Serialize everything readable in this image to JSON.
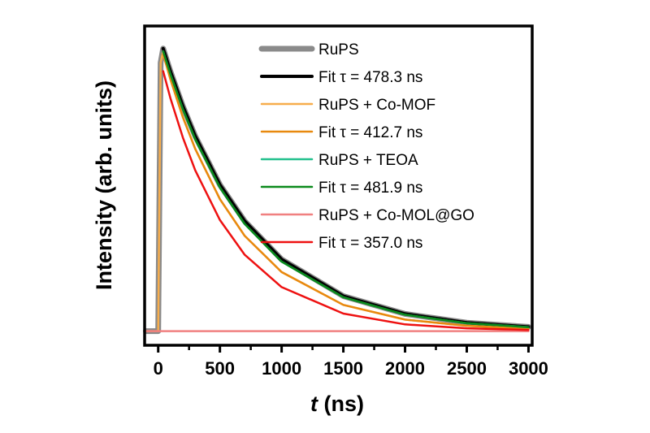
{
  "chart_data": {
    "type": "line",
    "title": "",
    "xlabel_italic": "t",
    "xlabel_rest": " (ns)",
    "ylabel": "Intensity (arb. units)",
    "xlim": [
      -110,
      3030
    ],
    "ylim": [
      -0.05,
      1.08
    ],
    "xticks": [
      0,
      500,
      1000,
      1500,
      2000,
      2500,
      3000
    ],
    "xtick_labels": [
      "0",
      "500",
      "1000",
      "1500",
      "2000",
      "2500",
      "3000"
    ],
    "minor_xticks": [
      250,
      750,
      1250,
      1750,
      2250,
      2750
    ],
    "grid": false,
    "legend_position": "top-right",
    "x": [
      -100,
      0,
      20,
      40,
      100,
      200,
      300,
      500,
      700,
      1000,
      1500,
      2000,
      2500,
      3000
    ],
    "series": [
      {
        "name": "RuPS",
        "legend": "RuPS",
        "color": "#8a8a8a",
        "width": 7,
        "values": [
          0,
          0,
          0.95,
          1.0,
          0.918,
          0.796,
          0.69,
          0.518,
          0.39,
          0.254,
          0.124,
          0.061,
          0.03,
          0.015
        ]
      },
      {
        "name": "Fit τ = 478.3 ns",
        "legend": "Fit τ = 478.3 ns",
        "color": "#000000",
        "width": 4,
        "values": [
          null,
          null,
          null,
          1.0,
          0.918,
          0.796,
          0.69,
          0.518,
          0.39,
          0.254,
          0.124,
          0.061,
          0.03,
          0.015
        ]
      },
      {
        "name": "RuPS + Co-MOF",
        "legend": "RuPS + Co-MOF",
        "color": "#f7ad4c",
        "width": 2.5,
        "values": [
          0,
          0,
          0.95,
          0.99,
          0.89,
          0.757,
          0.645,
          0.467,
          0.338,
          0.209,
          0.093,
          0.041,
          0.019,
          0.008
        ]
      },
      {
        "name": "Fit τ = 412.7 ns",
        "legend": "Fit τ = 412.7 ns",
        "color": "#e8890f",
        "width": 2.5,
        "values": [
          null,
          null,
          null,
          0.98,
          0.89,
          0.757,
          0.645,
          0.467,
          0.338,
          0.209,
          0.093,
          0.041,
          0.019,
          0.008
        ]
      },
      {
        "name": "RuPS + TEOA",
        "legend": "RuPS + TEOA",
        "color": "#22c08c",
        "width": 2.5,
        "values": [
          null,
          null,
          null,
          0.99,
          0.908,
          0.785,
          0.679,
          0.508,
          0.38,
          0.246,
          0.12,
          0.058,
          0.028,
          0.014
        ]
      },
      {
        "name": "Fit τ = 481.9 ns",
        "legend": "Fit τ = 481.9 ns",
        "color": "#0b8a1c",
        "width": 2.5,
        "values": [
          null,
          null,
          null,
          0.99,
          0.908,
          0.785,
          0.679,
          0.508,
          0.38,
          0.246,
          0.12,
          0.058,
          0.028,
          0.014
        ]
      },
      {
        "name": "RuPS + Co-MOL@GO",
        "legend": "RuPS + Co-MOL@GO",
        "color": "#f08080",
        "width": 2.5,
        "values": [
          0,
          0,
          0,
          0,
          0,
          0,
          0,
          0,
          0,
          0,
          0,
          0,
          0,
          0
        ]
      },
      {
        "name": "Fit τ = 357.0 ns",
        "legend": "Fit τ = 357.0 ns",
        "color": "#ee1111",
        "width": 2.5,
        "values": [
          null,
          null,
          null,
          0.92,
          0.823,
          0.685,
          0.569,
          0.393,
          0.271,
          0.156,
          0.062,
          0.024,
          0.01,
          0.004
        ]
      }
    ]
  }
}
